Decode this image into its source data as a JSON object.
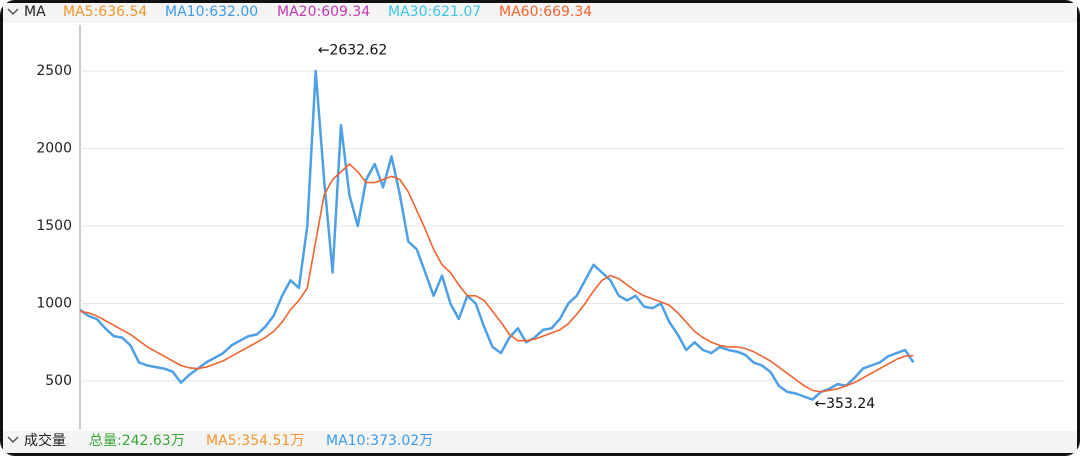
{
  "chart_data": {
    "type": "line",
    "legend_title": "MA",
    "legend": [
      {
        "text": "MA5:636.54",
        "color": "#f0962e"
      },
      {
        "text": "MA10:632.00",
        "color": "#3c9be8"
      },
      {
        "text": "MA20:609.34",
        "color": "#c23ab4"
      },
      {
        "text": "MA30:621.07",
        "color": "#3cc4e2"
      },
      {
        "text": "MA60:669.34",
        "color": "#f0642e"
      }
    ],
    "xlim": [
      0,
      117
    ],
    "ylim": [
      197,
      2784
    ],
    "yticks": [
      500,
      1000,
      1500,
      2000,
      2500
    ],
    "grid": true,
    "series": [
      {
        "color": "#4d9fe6",
        "values": [
          960,
          920,
          900,
          840,
          790,
          780,
          730,
          620,
          600,
          590,
          580,
          560,
          490,
          540,
          580,
          620,
          650,
          680,
          730,
          760,
          790,
          800,
          850,
          920,
          1050,
          1150,
          1100,
          1500,
          2500,
          1800,
          1200,
          2150,
          1700,
          1500,
          1800,
          1900,
          1750,
          1950,
          1700,
          1400,
          1350,
          1200,
          1050,
          1180,
          1000,
          900,
          1050,
          1000,
          850,
          720,
          680,
          780,
          840,
          750,
          780,
          830,
          840,
          900,
          1000,
          1050,
          1150,
          1250,
          1200,
          1150,
          1050,
          1020,
          1050,
          980,
          970,
          1000,
          880,
          800,
          700,
          750,
          700,
          680,
          720,
          700,
          690,
          670,
          620,
          600,
          560,
          470,
          430,
          420,
          400,
          380,
          430,
          450,
          480,
          470,
          520,
          580,
          600,
          620,
          660,
          680,
          700,
          620
        ]
      },
      {
        "color": "#f0642e",
        "values": [
          950,
          940,
          920,
          890,
          860,
          830,
          800,
          760,
          720,
          690,
          660,
          630,
          600,
          585,
          580,
          590,
          610,
          630,
          660,
          690,
          720,
          750,
          780,
          820,
          880,
          960,
          1020,
          1100,
          1400,
          1700,
          1800,
          1850,
          1900,
          1850,
          1780,
          1780,
          1800,
          1820,
          1800,
          1720,
          1600,
          1480,
          1350,
          1250,
          1200,
          1120,
          1050,
          1050,
          1020,
          950,
          880,
          800,
          760,
          760,
          770,
          790,
          810,
          830,
          870,
          930,
          1000,
          1080,
          1150,
          1180,
          1160,
          1120,
          1080,
          1050,
          1030,
          1010,
          990,
          940,
          880,
          820,
          780,
          750,
          730,
          720,
          720,
          710,
          690,
          660,
          630,
          590,
          550,
          510,
          470,
          440,
          430,
          440,
          450,
          470,
          490,
          520,
          550,
          580,
          610,
          640,
          660,
          665
        ]
      }
    ],
    "annotations": [
      {
        "label": "←2632.62",
        "value": 2632.62,
        "index": 28
      },
      {
        "label": "←353.24",
        "value": 353.24,
        "index": 87
      }
    ],
    "volume_title": "成交量",
    "volume_legend": [
      {
        "text": "总量:242.63万",
        "color": "#3aa63a"
      },
      {
        "text": "MA5:354.51万",
        "color": "#f0962e"
      },
      {
        "text": "MA10:373.02万",
        "color": "#3c9be8"
      }
    ]
  }
}
